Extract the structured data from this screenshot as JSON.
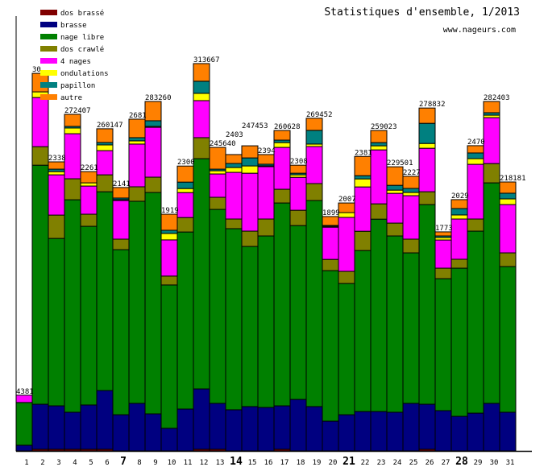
{
  "title": "Statistiques d'ensemble, 1/2013",
  "site": "www.nageurs.com",
  "chart_data": {
    "type": "bar",
    "stacked": true,
    "title": "Statistiques d'ensemble, 1/2013",
    "xlabel": "",
    "ylabel": "",
    "ylim": [
      0,
      313667
    ],
    "grid": false,
    "legend_placement": "top-left",
    "categories": [
      "1",
      "2",
      "3",
      "4",
      "5",
      "6",
      "7",
      "8",
      "9",
      "10",
      "11",
      "12",
      "13",
      "14",
      "15",
      "16",
      "17",
      "18",
      "19",
      "20",
      "21",
      "22",
      "23",
      "24",
      "25",
      "26",
      "27",
      "28",
      "29",
      "30",
      "31"
    ],
    "major_ticks": [
      "7",
      "14",
      "21",
      "28"
    ],
    "bar_labels": [
      "4381",
      "30",
      "2338",
      "272407",
      "2261",
      "260147",
      "2141",
      "2681",
      "283260",
      "1919",
      "2300",
      "313667",
      "245640",
      "2403",
      "247453",
      "2394",
      "260628",
      "2308",
      "269452",
      "1899",
      "2007",
      "2381",
      "259023",
      "229501",
      "2227",
      "278832",
      "1773",
      "2029",
      "2470",
      "282403",
      "218181"
    ],
    "series": [
      {
        "name": "dos brassé",
        "color": "#800000",
        "values": [
          0,
          1300,
          1300,
          1300,
          1300,
          1300,
          0,
          0,
          0,
          0,
          0,
          1300,
          1300,
          0,
          0,
          0,
          1300,
          0,
          0,
          0,
          0,
          0,
          0,
          0,
          0,
          1300,
          0,
          0,
          0,
          0,
          0
        ]
      },
      {
        "name": "brasse",
        "color": "#000080",
        "values": [
          4600,
          36500,
          35200,
          30000,
          35900,
          47600,
          29300,
          38500,
          30000,
          18300,
          33900,
          48900,
          37200,
          33300,
          35900,
          35200,
          35200,
          41700,
          35900,
          24100,
          29300,
          31900,
          31900,
          31300,
          38500,
          36500,
          32600,
          28000,
          30600,
          38500,
          31300
        ]
      },
      {
        "name": "nage libre",
        "color": "#008000",
        "values": [
          34600,
          193600,
          135600,
          172100,
          144700,
          161000,
          133700,
          163700,
          179300,
          116100,
          143400,
          186500,
          157100,
          146700,
          129700,
          138900,
          164300,
          140800,
          166900,
          121900,
          106300,
          130400,
          155800,
          142800,
          121900,
          161700,
          106900,
          120000,
          147400,
          178600,
          118000
        ]
      },
      {
        "name": "dos crawlé",
        "color": "#808000",
        "values": [
          0,
          15000,
          18900,
          17000,
          9800,
          13700,
          8500,
          11700,
          12400,
          7200,
          11700,
          17000,
          9800,
          7800,
          12400,
          13700,
          11100,
          12400,
          13700,
          9100,
          9800,
          15600,
          12400,
          10400,
          11100,
          10400,
          8500,
          7200,
          9800,
          15600,
          11100
        ]
      },
      {
        "name": "4 nages",
        "color": "#ff00ff",
        "values": [
          5900,
          39800,
          32600,
          36500,
          22800,
          19600,
          31300,
          34600,
          40400,
          29300,
          20200,
          30000,
          18900,
          37800,
          46900,
          42400,
          33900,
          26700,
          30000,
          26100,
          43700,
          35900,
          43700,
          24100,
          35200,
          35200,
          22800,
          32600,
          44300,
          37200,
          39100
        ]
      },
      {
        "name": "ondulations",
        "color": "#ffff00",
        "values": [
          0,
          4600,
          2600,
          4600,
          2600,
          4600,
          700,
          2600,
          700,
          5200,
          3300,
          5900,
          2600,
          3900,
          5900,
          700,
          3900,
          2000,
          2000,
          700,
          3900,
          6500,
          3300,
          2600,
          2600,
          3900,
          2000,
          3300,
          4600,
          2000,
          4600
        ]
      },
      {
        "name": "papillon",
        "color": "#008080",
        "values": [
          0,
          0,
          2000,
          1300,
          0,
          2000,
          1300,
          2600,
          4600,
          2600,
          5200,
          9800,
          1300,
          3300,
          6500,
          1300,
          2000,
          1300,
          11100,
          700,
          0,
          2600,
          2600,
          3900,
          3300,
          16300,
          1300,
          5200,
          4600,
          2000,
          4600
        ]
      },
      {
        "name": "autre",
        "color": "#ff8000",
        "values": [
          0,
          15000,
          5900,
          9800,
          9100,
          11100,
          8500,
          15000,
          15600,
          13000,
          13000,
          14300,
          17600,
          7200,
          9800,
          7800,
          7800,
          6500,
          9800,
          7200,
          7800,
          15600,
          9800,
          15000,
          9800,
          12400,
          3300,
          7200,
          5900,
          9100,
          9100
        ]
      }
    ]
  }
}
